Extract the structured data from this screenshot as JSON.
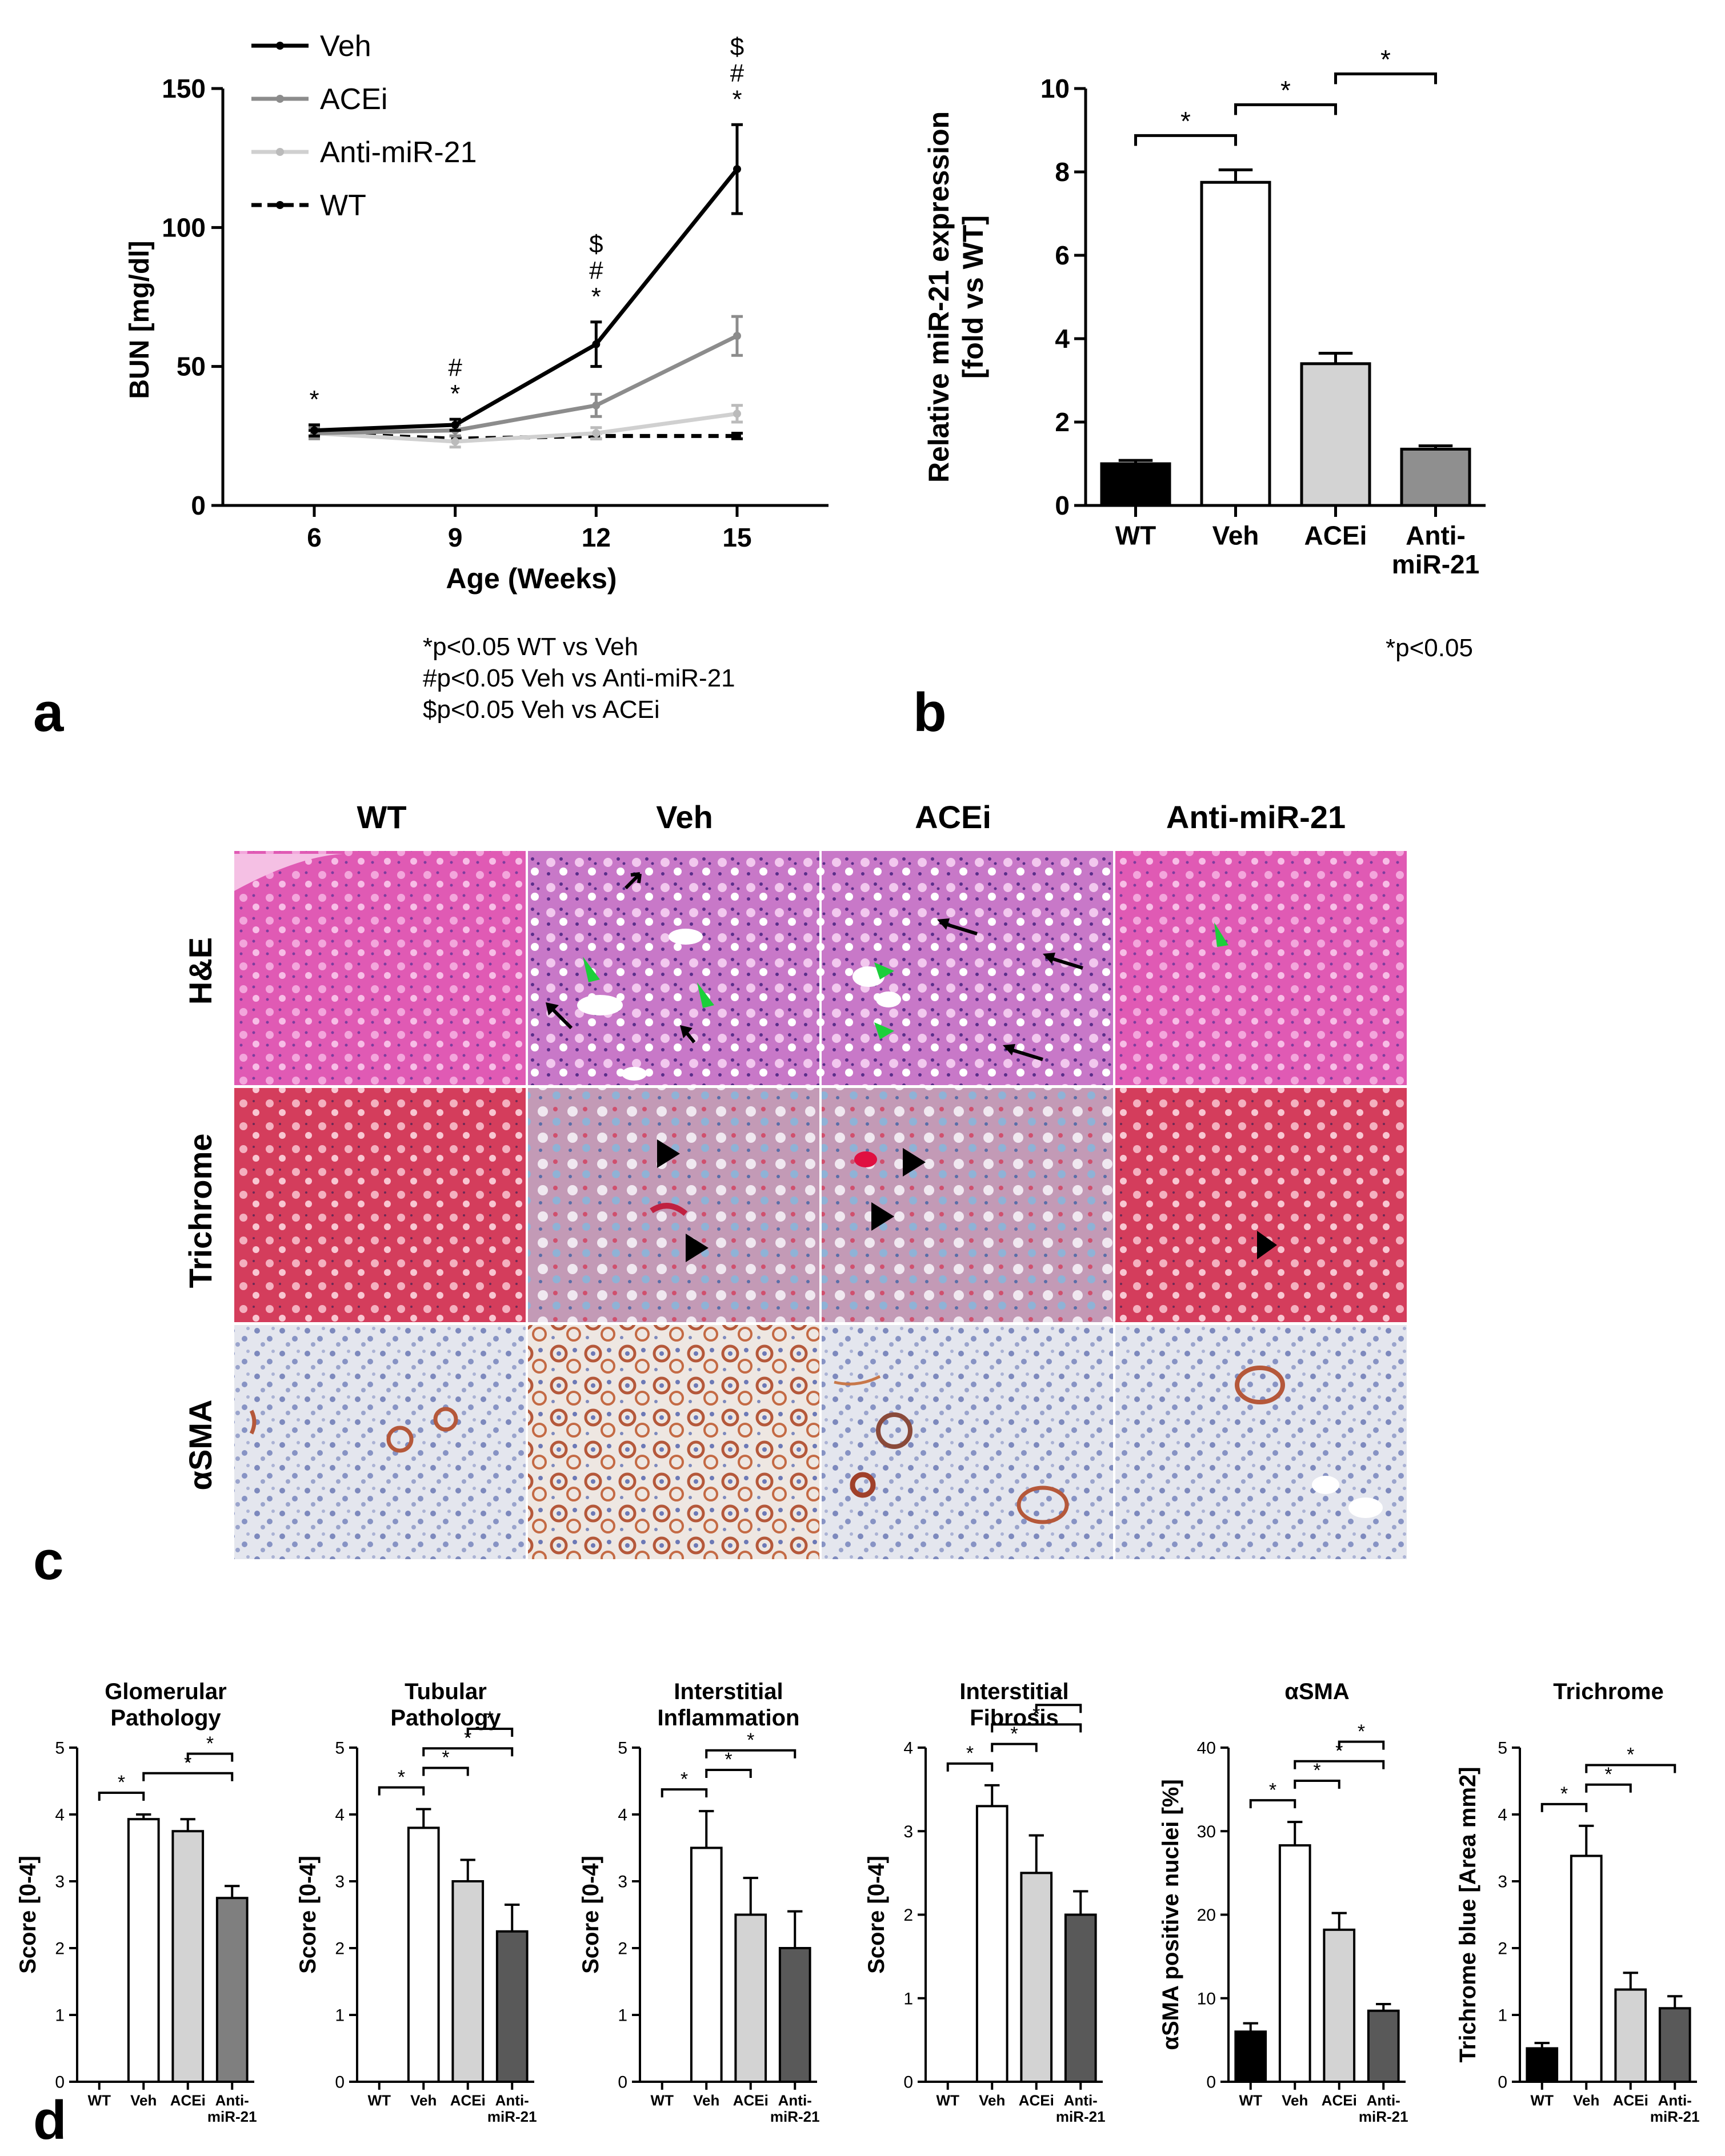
{
  "panel_labels": [
    "a",
    "b",
    "c",
    "d"
  ],
  "panel_a_footnotes": [
    "*p<0.05 WT vs Veh",
    "#p<0.05 Veh vs Anti-miR-21",
    "$p<0.05 Veh vs ACEi"
  ],
  "panel_b_footnote": "*p<0.05",
  "histology": {
    "columns": [
      "WT",
      "Veh",
      "ACEi",
      "Anti-miR-21"
    ],
    "rows": [
      "H&E",
      "Trichrome",
      "αSMA"
    ]
  },
  "chart_data": [
    {
      "id": "a",
      "type": "line",
      "title": "",
      "xlabel": "Age (Weeks)",
      "ylabel": "BUN [mg/dl]",
      "x": [
        6,
        9,
        12,
        15
      ],
      "xticks": [
        "6",
        "9",
        "12",
        "15"
      ],
      "ylim": [
        0,
        150
      ],
      "yticks": [
        "0",
        "50",
        "100",
        "150"
      ],
      "legend_position": "top-left",
      "series": [
        {
          "name": "Veh",
          "values": [
            27,
            29,
            58,
            121
          ],
          "err": [
            2,
            2,
            8,
            16
          ],
          "color": "#000000",
          "dash": false,
          "marker": "#000000"
        },
        {
          "name": "ACEi",
          "values": [
            26,
            27,
            36,
            61
          ],
          "err": [
            2,
            2,
            4,
            7
          ],
          "color": "#8c8c8c",
          "dash": false,
          "marker": "#8c8c8c"
        },
        {
          "name": "Anti-miR-21",
          "values": [
            26,
            23,
            26,
            33
          ],
          "err": [
            2,
            2,
            2,
            3
          ],
          "color": "#d0d0d0",
          "dash": false,
          "marker": "#bbbbbb"
        },
        {
          "name": "WT",
          "values": [
            26,
            24,
            25,
            25
          ],
          "err": [
            1,
            1,
            1,
            1
          ],
          "color": "#000000",
          "dash": true,
          "marker": "#000000"
        }
      ],
      "annotations": [
        {
          "x": 6,
          "stack": [
            "*"
          ]
        },
        {
          "x": 9,
          "stack": [
            "#",
            "*"
          ]
        },
        {
          "x": 12,
          "stack": [
            "$",
            "#",
            "*"
          ]
        },
        {
          "x": 15,
          "stack": [
            "$",
            "#",
            "*"
          ]
        }
      ]
    },
    {
      "id": "b",
      "type": "bar",
      "title": "",
      "ylabel": "Relative miR-21 expression [fold vs WT]",
      "ylabel_lines": [
        "Relative miR-21 expression",
        "[fold vs WT]"
      ],
      "categories": [
        "WT",
        "Veh",
        "ACEi",
        "Anti-miR-21"
      ],
      "category_lines": [
        [
          "WT"
        ],
        [
          "Veh"
        ],
        [
          "ACEi"
        ],
        [
          "Anti-",
          "miR-21"
        ]
      ],
      "values": [
        1.0,
        7.75,
        3.4,
        1.35
      ],
      "err": [
        0.08,
        0.3,
        0.25,
        0.08
      ],
      "colors": [
        "#000000",
        "#ffffff",
        "#d3d3d3",
        "#8f8f8f"
      ],
      "ylim": [
        0,
        10
      ],
      "yticks": [
        "0",
        "2",
        "4",
        "6",
        "8",
        "10"
      ],
      "brackets": [
        [
          0,
          1,
          "*"
        ],
        [
          1,
          2,
          "*"
        ],
        [
          2,
          3,
          "*"
        ]
      ]
    },
    {
      "id": "d1",
      "type": "bar",
      "title": "Glomerular Pathology",
      "title_lines": [
        "Glomerular",
        "Pathology"
      ],
      "ylabel": "Score [0-4]",
      "categories": [
        "WT",
        "Veh",
        "ACEi",
        "Anti-miR-21"
      ],
      "category_lines": [
        [
          "WT"
        ],
        [
          "Veh"
        ],
        [
          "ACEi"
        ],
        [
          "Anti-",
          "miR-21"
        ]
      ],
      "values": [
        0,
        3.93,
        3.75,
        2.75
      ],
      "err": [
        0,
        0.07,
        0.18,
        0.18
      ],
      "colors": [
        "#000000",
        "#ffffff",
        "#d3d3d3",
        "#7f7f7f"
      ],
      "ylim": [
        0,
        5
      ],
      "yticks": [
        "0",
        "1",
        "2",
        "3",
        "4",
        "5"
      ],
      "brackets": [
        [
          0,
          1,
          "*"
        ],
        [
          1,
          3,
          "*"
        ],
        [
          2,
          3,
          "*"
        ]
      ]
    },
    {
      "id": "d2",
      "type": "bar",
      "title": "Tubular Pathology",
      "title_lines": [
        "Tubular",
        "Pathology"
      ],
      "ylabel": "Score [0-4]",
      "categories": [
        "WT",
        "Veh",
        "ACEi",
        "Anti-miR-21"
      ],
      "category_lines": [
        [
          "WT"
        ],
        [
          "Veh"
        ],
        [
          "ACEi"
        ],
        [
          "Anti-",
          "miR-21"
        ]
      ],
      "values": [
        0,
        3.8,
        3.0,
        2.25
      ],
      "err": [
        0,
        0.28,
        0.32,
        0.4
      ],
      "colors": [
        "#000000",
        "#ffffff",
        "#d3d3d3",
        "#595959"
      ],
      "ylim": [
        0,
        5
      ],
      "yticks": [
        "0",
        "1",
        "2",
        "3",
        "4",
        "5"
      ],
      "brackets": [
        [
          0,
          1,
          "*"
        ],
        [
          1,
          2,
          "*"
        ],
        [
          1,
          3,
          "*"
        ],
        [
          2,
          3,
          "*"
        ]
      ]
    },
    {
      "id": "d3",
      "type": "bar",
      "title": "Interstitial Inflammation",
      "title_lines": [
        "Interstitial",
        "Inflammation"
      ],
      "ylabel": "Score [0-4]",
      "categories": [
        "WT",
        "Veh",
        "ACEi",
        "Anti-miR-21"
      ],
      "category_lines": [
        [
          "WT"
        ],
        [
          "Veh"
        ],
        [
          "ACEi"
        ],
        [
          "Anti-",
          "miR-21"
        ]
      ],
      "values": [
        0,
        3.5,
        2.5,
        2.0
      ],
      "err": [
        0,
        0.55,
        0.55,
        0.55
      ],
      "colors": [
        "#000000",
        "#ffffff",
        "#d3d3d3",
        "#595959"
      ],
      "ylim": [
        0,
        5
      ],
      "yticks": [
        "0",
        "1",
        "2",
        "3",
        "4",
        "5"
      ],
      "brackets": [
        [
          0,
          1,
          "*"
        ],
        [
          1,
          2,
          "*"
        ],
        [
          1,
          3,
          "*"
        ]
      ]
    },
    {
      "id": "d4",
      "type": "bar",
      "title": "Interstitial Fibrosis",
      "title_lines": [
        "Interstitial",
        "Fibrosis"
      ],
      "ylabel": "Score [0-4]",
      "categories": [
        "WT",
        "Veh",
        "ACEi",
        "Anti-miR-21"
      ],
      "category_lines": [
        [
          "WT"
        ],
        [
          "Veh"
        ],
        [
          "ACEi"
        ],
        [
          "Anti-",
          "miR-21"
        ]
      ],
      "values": [
        0,
        3.3,
        2.5,
        2.0
      ],
      "err": [
        0,
        0.25,
        0.45,
        0.28
      ],
      "colors": [
        "#000000",
        "#ffffff",
        "#d3d3d3",
        "#595959"
      ],
      "ylim": [
        0,
        4
      ],
      "yticks": [
        "0",
        "1",
        "2",
        "3",
        "4"
      ],
      "brackets": [
        [
          0,
          1,
          "*"
        ],
        [
          1,
          2,
          "*"
        ],
        [
          1,
          3,
          "*"
        ],
        [
          2,
          3,
          "*"
        ]
      ]
    },
    {
      "id": "d5",
      "type": "bar",
      "title": "αSMA",
      "title_lines": [
        "αSMA"
      ],
      "ylabel": "αSMA positive nuclei [%]",
      "categories": [
        "WT",
        "Veh",
        "ACEi",
        "Anti-miR-21"
      ],
      "category_lines": [
        [
          "WT"
        ],
        [
          "Veh"
        ],
        [
          "ACEi"
        ],
        [
          "Anti-",
          "miR-21"
        ]
      ],
      "values": [
        6.0,
        28.3,
        18.2,
        8.5
      ],
      "err": [
        1.0,
        2.8,
        2.0,
        0.8
      ],
      "colors": [
        "#000000",
        "#ffffff",
        "#d3d3d3",
        "#595959"
      ],
      "ylim": [
        0,
        40
      ],
      "yticks": [
        "0",
        "10",
        "20",
        "30",
        "40"
      ],
      "brackets": [
        [
          0,
          1,
          "*"
        ],
        [
          1,
          2,
          "*"
        ],
        [
          1,
          3,
          "*"
        ],
        [
          2,
          3,
          "*"
        ]
      ]
    },
    {
      "id": "d6",
      "type": "bar",
      "title": "Trichrome",
      "title_lines": [
        "Trichrome"
      ],
      "ylabel": "Trichrome blue [Area mm2]",
      "categories": [
        "WT",
        "Veh",
        "ACEi",
        "Anti-miR-21"
      ],
      "category_lines": [
        [
          "WT"
        ],
        [
          "Veh"
        ],
        [
          "ACEi"
        ],
        [
          "Anti-",
          "miR-21"
        ]
      ],
      "values": [
        0.5,
        3.38,
        1.38,
        1.1
      ],
      "err": [
        0.08,
        0.45,
        0.25,
        0.18
      ],
      "colors": [
        "#000000",
        "#ffffff",
        "#d3d3d3",
        "#595959"
      ],
      "ylim": [
        0,
        5
      ],
      "yticks": [
        "0",
        "1",
        "2",
        "3",
        "4",
        "5"
      ],
      "brackets": [
        [
          0,
          1,
          "*"
        ],
        [
          1,
          2,
          "*"
        ],
        [
          1,
          3,
          "*"
        ]
      ]
    }
  ]
}
